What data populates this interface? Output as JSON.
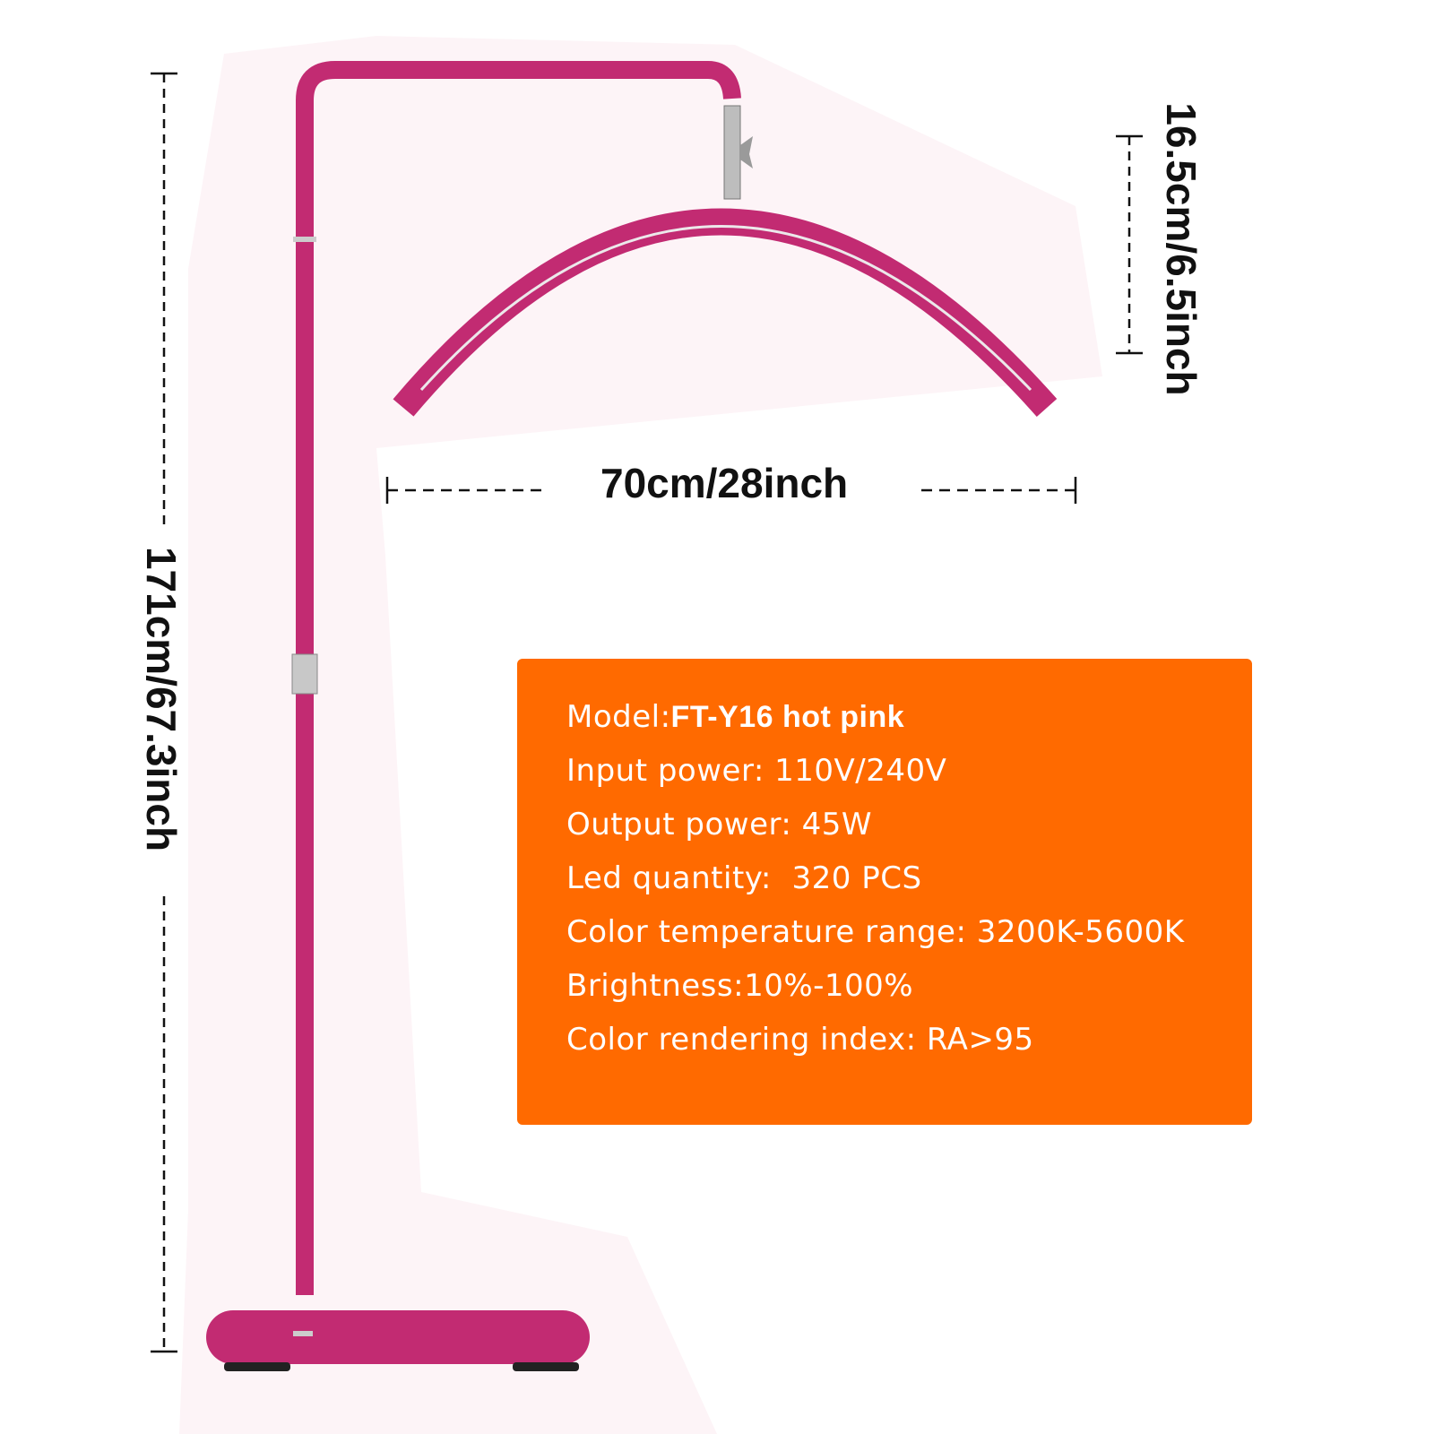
{
  "dimensions": {
    "width": "70cm/28inch",
    "height": "171cm/67.3inch",
    "arc_height": "16.5cm/6.5inch"
  },
  "specs": [
    {
      "label": "Model:",
      "value": "FT-Y16 hot pink"
    },
    {
      "label": "Input power:",
      "value": " 110V/240V"
    },
    {
      "label": "Output power:",
      "value": " 45W"
    },
    {
      "label": "Led quantity:",
      "value": "  320 PCS"
    },
    {
      "label": "Color temperature range:",
      "value": " 3200K-5600K"
    },
    {
      "label": "Brightness:",
      "value": "10%-100%"
    },
    {
      "label": "Color rendering index:",
      "value": " RA>95"
    }
  ],
  "colors": {
    "lamp": "#C22B72",
    "spec_box": "#FF6A00",
    "text": "#FFFFFF"
  },
  "icons": [
    "floor-lamp-illustration"
  ]
}
